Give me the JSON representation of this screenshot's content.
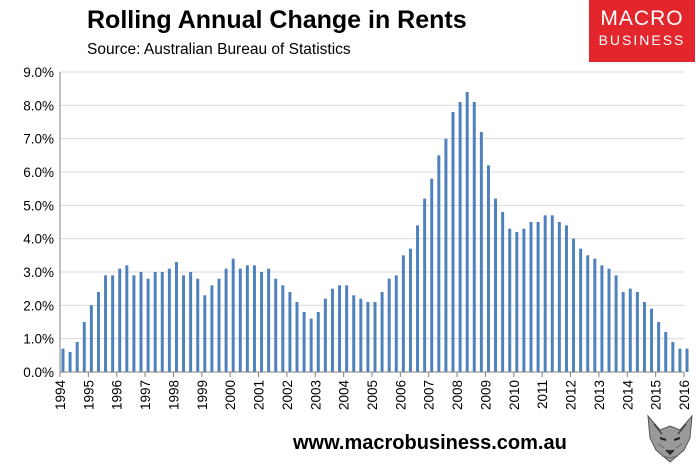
{
  "header": {
    "title": "Rolling Annual Change in Rents",
    "subtitle": "Source: Australian Bureau of Statistics"
  },
  "logo": {
    "line1": "MACRO",
    "line2": "BUSINESS",
    "color": "#e3262b"
  },
  "footer": {
    "url": "www.macrobusiness.com.au"
  },
  "chart_data": {
    "type": "bar",
    "title": "Rolling Annual Change in Rents",
    "subtitle": "Source: Australian Bureau of Statistics",
    "xlabel": "",
    "ylabel": "",
    "ylim": [
      0,
      9
    ],
    "y_ticks": [
      "0.0%",
      "1.0%",
      "2.0%",
      "3.0%",
      "4.0%",
      "5.0%",
      "6.0%",
      "7.0%",
      "8.0%",
      "9.0%"
    ],
    "x_tick_labels": [
      "1994",
      "1995",
      "1996",
      "1997",
      "1998",
      "1999",
      "2000",
      "2001",
      "2002",
      "2003",
      "2004",
      "2005",
      "2006",
      "2007",
      "2008",
      "2009",
      "2010",
      "2011",
      "2012",
      "2013",
      "2014",
      "2015",
      "2016"
    ],
    "x_start": 1994.0,
    "x_end": 2016.0,
    "frequency": "quarterly",
    "bar_color": "#4f81bd",
    "values": [
      0.7,
      0.6,
      0.9,
      1.5,
      2.0,
      2.4,
      2.9,
      2.9,
      3.1,
      3.2,
      2.9,
      3.0,
      2.8,
      3.0,
      3.0,
      3.1,
      3.3,
      2.9,
      3.0,
      2.8,
      2.3,
      2.6,
      2.8,
      3.1,
      3.4,
      3.1,
      3.2,
      3.2,
      3.0,
      3.1,
      2.8,
      2.6,
      2.4,
      2.1,
      1.8,
      1.6,
      1.8,
      2.2,
      2.5,
      2.6,
      2.6,
      2.3,
      2.2,
      2.1,
      2.1,
      2.4,
      2.8,
      2.9,
      3.5,
      3.7,
      4.4,
      5.2,
      5.8,
      6.5,
      7.0,
      7.8,
      8.1,
      8.4,
      8.1,
      7.2,
      6.2,
      5.2,
      4.8,
      4.3,
      4.2,
      4.3,
      4.5,
      4.5,
      4.7,
      4.7,
      4.5,
      4.4,
      4.0,
      3.7,
      3.5,
      3.4,
      3.2,
      3.1,
      2.9,
      2.4,
      2.5,
      2.4,
      2.1,
      1.9,
      1.5,
      1.2,
      0.9,
      0.7,
      0.7
    ]
  }
}
